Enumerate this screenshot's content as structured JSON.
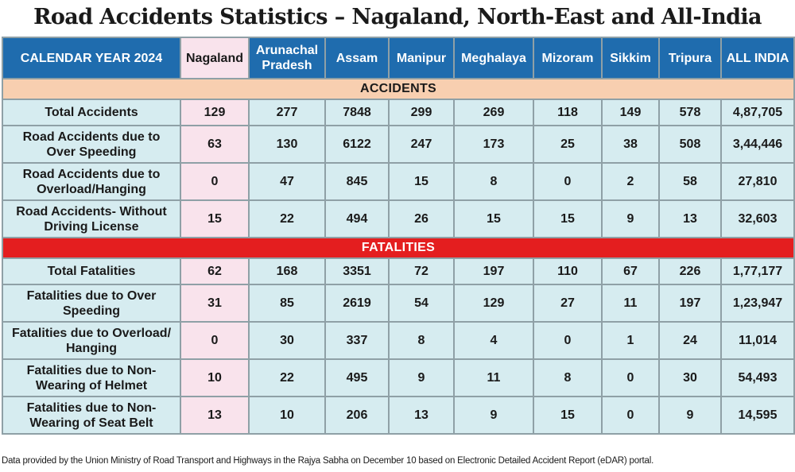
{
  "title": "Road Accidents Statistics – Nagaland, North-East and All-India",
  "table": {
    "corner_label": "CALENDAR YEAR 2024",
    "columns": [
      "Nagaland",
      "Arunachal Pradesh",
      "Assam",
      "Manipur",
      "Meghalaya",
      "Mizoram",
      "Sikkim",
      "Tripura",
      "ALL INDIA"
    ],
    "sections": [
      {
        "name": "ACCIDENTS",
        "rows": [
          {
            "label": "Total Accidents",
            "values": [
              "129",
              "277",
              "7848",
              "299",
              "269",
              "118",
              "149",
              "578",
              "4,87,705"
            ]
          },
          {
            "label": "Road Accidents due to Over Speeding",
            "values": [
              "63",
              "130",
              "6122",
              "247",
              "173",
              "25",
              "38",
              "508",
              "3,44,446"
            ]
          },
          {
            "label": "Road Accidents due to Overload/Hanging",
            "values": [
              "0",
              "47",
              "845",
              "15",
              "8",
              "0",
              "2",
              "58",
              "27,810"
            ]
          },
          {
            "label": "Road Accidents- Without Driving License",
            "values": [
              "15",
              "22",
              "494",
              "26",
              "15",
              "15",
              "9",
              "13",
              "32,603"
            ]
          }
        ]
      },
      {
        "name": "FATALITIES",
        "rows": [
          {
            "label": "Total Fatalities",
            "values": [
              "62",
              "168",
              "3351",
              "72",
              "197",
              "110",
              "67",
              "226",
              "1,77,177"
            ]
          },
          {
            "label": "Fatalities due to Over Speeding",
            "values": [
              "31",
              "85",
              "2619",
              "54",
              "129",
              "27",
              "11",
              "197",
              "1,23,947"
            ]
          },
          {
            "label": "Fatalities due to Overload/ Hanging",
            "values": [
              "0",
              "30",
              "337",
              "8",
              "4",
              "0",
              "1",
              "24",
              "11,014"
            ]
          },
          {
            "label": "Fatalities due to Non-Wearing of Helmet",
            "values": [
              "10",
              "22",
              "495",
              "9",
              "11",
              "8",
              "0",
              "30",
              "54,493"
            ]
          },
          {
            "label": "Fatalities due to Non-Wearing of Seat Belt",
            "values": [
              "13",
              "10",
              "206",
              "13",
              "9",
              "15",
              "0",
              "9",
              "14,595"
            ]
          }
        ]
      }
    ]
  },
  "chart_data": {
    "type": "table",
    "title": "Road Accidents Statistics – Nagaland, North-East and All-India",
    "categories": [
      "Nagaland",
      "Arunachal Pradesh",
      "Assam",
      "Manipur",
      "Meghalaya",
      "Mizoram",
      "Sikkim",
      "Tripura",
      "ALL INDIA"
    ],
    "series": [
      {
        "name": "Total Accidents",
        "values": [
          129,
          277,
          7848,
          299,
          269,
          118,
          149,
          578,
          487705
        ]
      },
      {
        "name": "Road Accidents due to Over Speeding",
        "values": [
          63,
          130,
          6122,
          247,
          173,
          25,
          38,
          508,
          344446
        ]
      },
      {
        "name": "Road Accidents due to Overload/Hanging",
        "values": [
          0,
          47,
          845,
          15,
          8,
          0,
          2,
          58,
          27810
        ]
      },
      {
        "name": "Road Accidents- Without Driving License",
        "values": [
          15,
          22,
          494,
          26,
          15,
          15,
          9,
          13,
          32603
        ]
      },
      {
        "name": "Total Fatalities",
        "values": [
          62,
          168,
          3351,
          72,
          197,
          110,
          67,
          226,
          177177
        ]
      },
      {
        "name": "Fatalities due to Over Speeding",
        "values": [
          31,
          85,
          2619,
          54,
          129,
          27,
          11,
          197,
          123947
        ]
      },
      {
        "name": "Fatalities due to Overload/ Hanging",
        "values": [
          0,
          30,
          337,
          8,
          4,
          0,
          1,
          24,
          11014
        ]
      },
      {
        "name": "Fatalities due to Non-Wearing of Helmet",
        "values": [
          10,
          22,
          495,
          9,
          11,
          8,
          0,
          30,
          54493
        ]
      },
      {
        "name": "Fatalities due to Non-Wearing of Seat Belt",
        "values": [
          13,
          10,
          206,
          13,
          9,
          15,
          0,
          9,
          14595
        ]
      }
    ]
  },
  "colors": {
    "header_blue": "#1f6cae",
    "nagaland_pink": "#f9e3ec",
    "accidents_band": "#f8cfb0",
    "fatalities_band": "#e41e1f",
    "cell_blue": "#d6ecf0"
  },
  "footnote": "Data provided by the Union Ministry of Road Transport and Highways  in the Rajya Sabha on December 10 based on Electronic Detailed Accident Report (eDAR) portal."
}
